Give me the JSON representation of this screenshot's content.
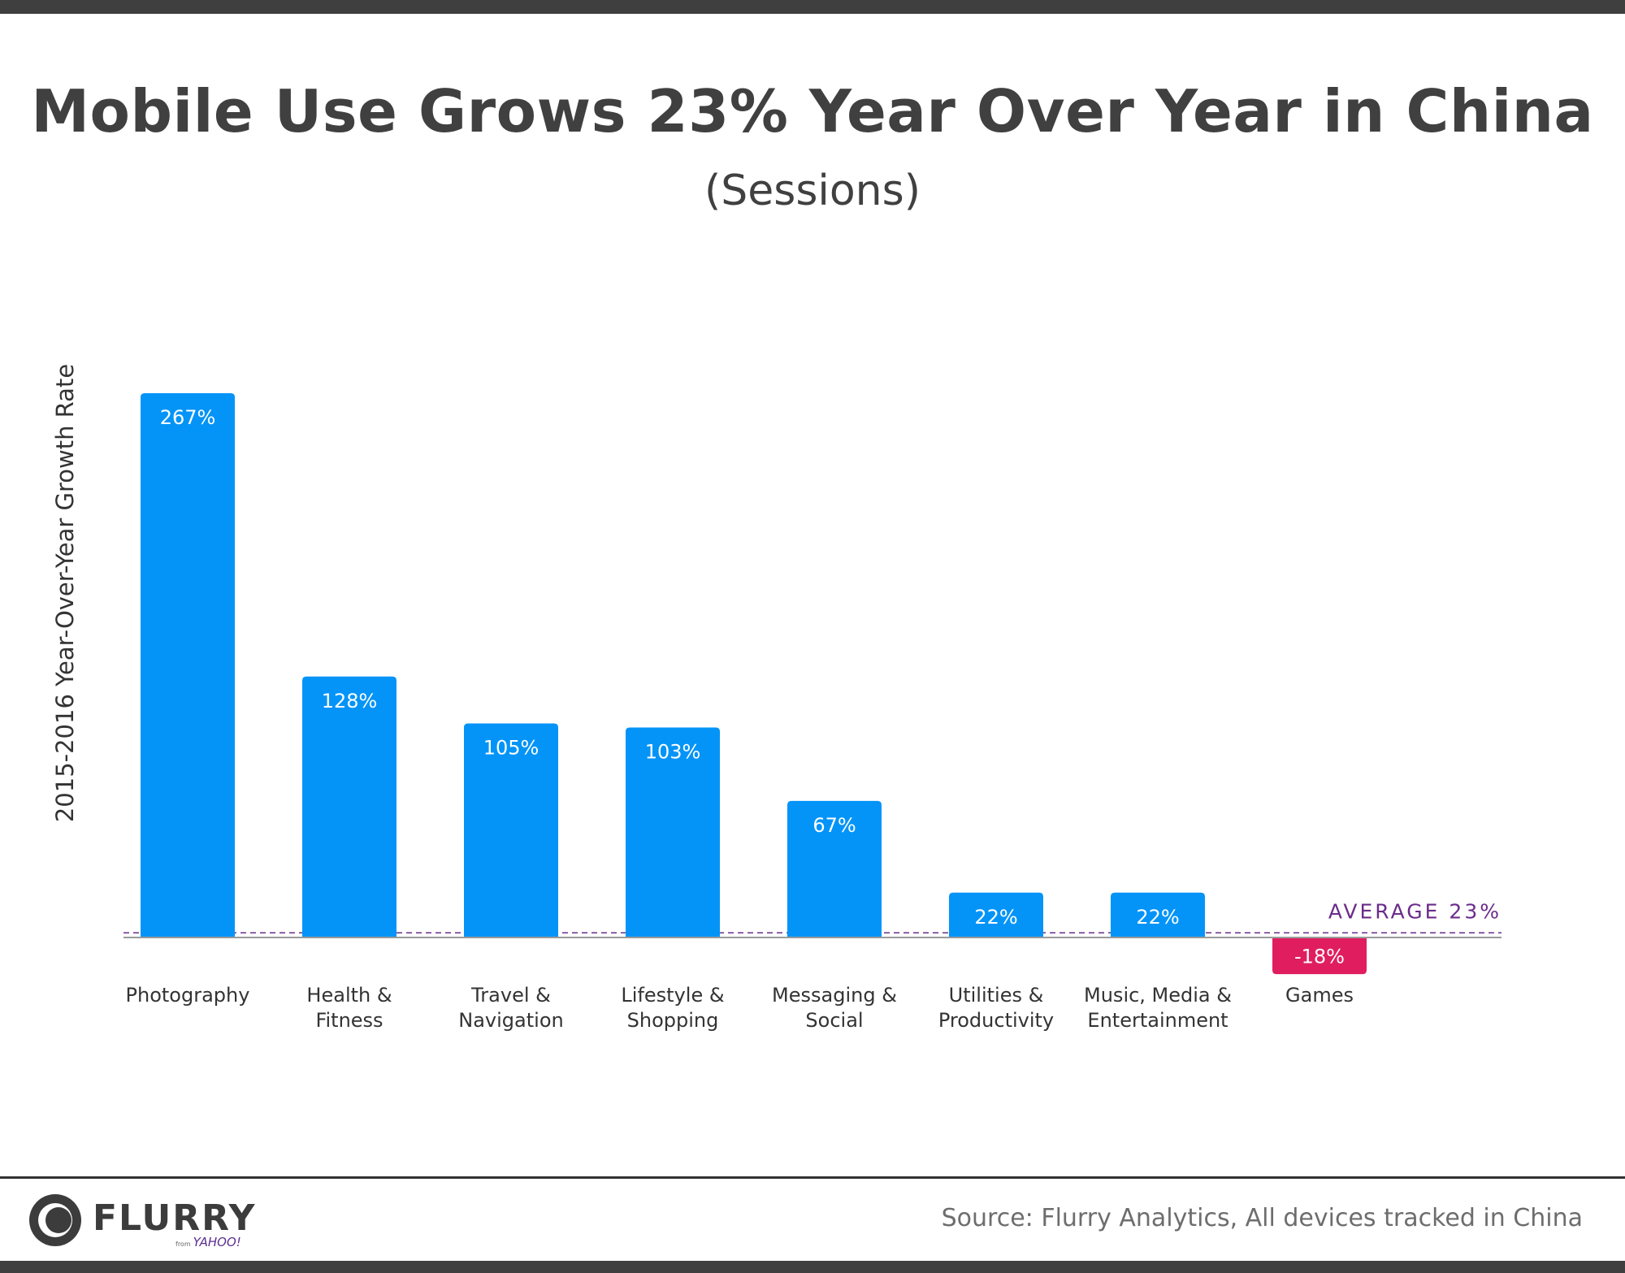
{
  "chart_data": {
    "type": "bar",
    "title": "Mobile Use Grows 23% Year Over Year in China",
    "subtitle": "(Sessions)",
    "xlabel": "",
    "ylabel": "2015-2016 Year-Over-Year Growth Rate",
    "categories": [
      [
        "Photography"
      ],
      [
        "Health &",
        "Fitness"
      ],
      [
        "Travel &",
        "Navigation"
      ],
      [
        "Lifestyle &",
        "Shopping"
      ],
      [
        "Messaging &",
        "Social"
      ],
      [
        "Utilities &",
        "Productivity"
      ],
      [
        "Music, Media &",
        "Entertainment"
      ],
      [
        "Games"
      ]
    ],
    "values": [
      267,
      128,
      105,
      103,
      67,
      22,
      22,
      -18
    ],
    "data_labels": [
      "267%",
      "128%",
      "105%",
      "103%",
      "67%",
      "22%",
      "22%",
      "-18%"
    ],
    "average": {
      "value": 23,
      "label": "AVERAGE 23%"
    },
    "ylim": [
      -20,
      290
    ],
    "grid": false,
    "colors": {
      "positive": "#0494f8",
      "negative": "#e01e5f",
      "average": "#6a2c8a",
      "baseline": "#9a9a9a"
    }
  },
  "footer": {
    "source": "Source: Flurry Analytics, All devices tracked in China",
    "logo_text": "FLURRY",
    "logo_from_small": "from",
    "logo_from": "YAHOO!"
  }
}
